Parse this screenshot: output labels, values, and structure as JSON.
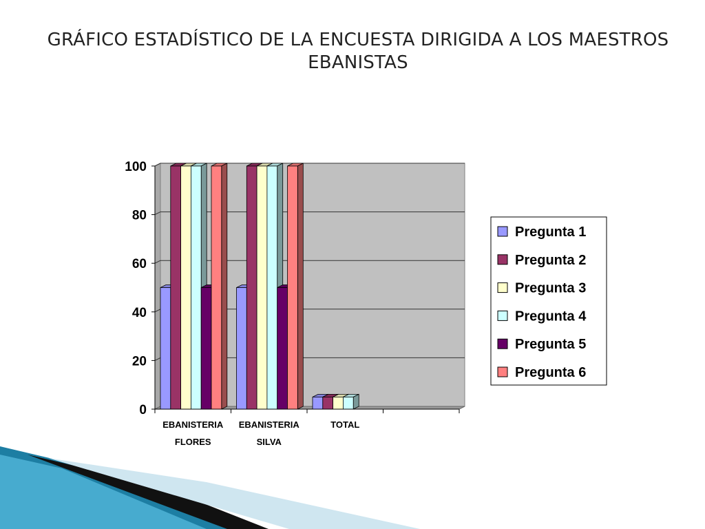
{
  "slide": {
    "title_line1": "GRÁFICO ESTADÍSTICO DE LA ENCUESTA DIRIGIDA A LOS MAESTROS",
    "title_line2": "EBANISTAS"
  },
  "chart_data": {
    "type": "bar",
    "style": "3d-clustered-column",
    "categories": [
      [
        "EBANISTERIA",
        "FLORES"
      ],
      [
        "EBANISTERIA",
        "SILVA"
      ],
      [
        "TOTAL"
      ],
      [
        ""
      ]
    ],
    "series": [
      {
        "name": "Pregunta 1",
        "color": "#9999ff",
        "values": [
          50,
          50,
          5,
          null
        ]
      },
      {
        "name": "Pregunta 2",
        "color": "#993366",
        "values": [
          100,
          100,
          5,
          null
        ]
      },
      {
        "name": "Pregunta 3",
        "color": "#ffffcc",
        "values": [
          100,
          100,
          5,
          null
        ]
      },
      {
        "name": "Pregunta 4",
        "color": "#ccffff",
        "values": [
          100,
          100,
          5,
          null
        ]
      },
      {
        "name": "Pregunta 5",
        "color": "#660066",
        "values": [
          50,
          50,
          null,
          null
        ]
      },
      {
        "name": "Pregunta 6",
        "color": "#ff8080",
        "values": [
          100,
          100,
          null,
          null
        ]
      }
    ],
    "yticks": [
      0,
      20,
      40,
      60,
      80,
      100
    ],
    "ylim": [
      0,
      100
    ],
    "plot_background": "#c0c0c0",
    "grid": true,
    "legend_position": "right"
  }
}
